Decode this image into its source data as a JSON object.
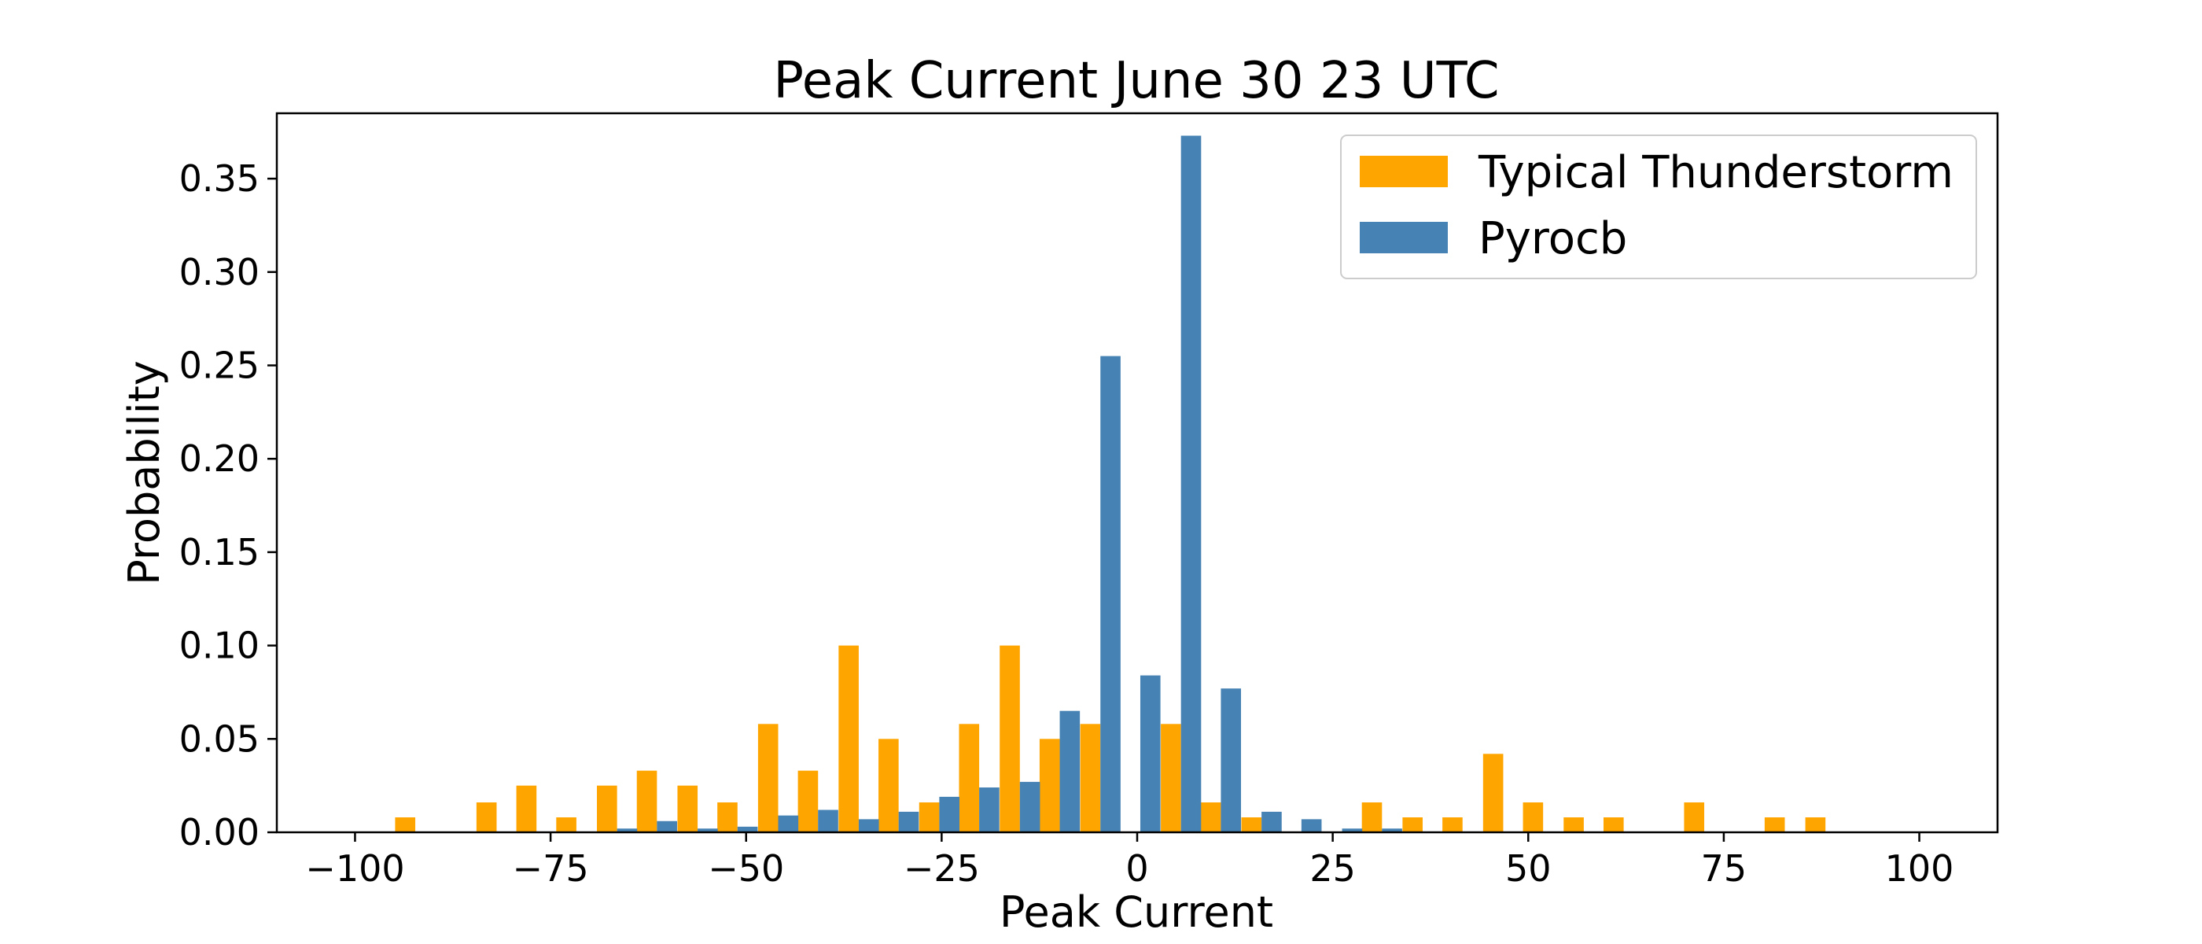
{
  "chart_data": {
    "type": "bar",
    "title": "Peak Current June 30 23 UTC",
    "xlabel": "Peak Current",
    "ylabel": "Probability",
    "xlim": [
      -110,
      110
    ],
    "ylim": [
      0,
      0.385
    ],
    "xticks": [
      -100,
      -75,
      -50,
      -25,
      0,
      25,
      50,
      75,
      100
    ],
    "xtick_labels": [
      "−100",
      "−75",
      "−50",
      "−25",
      "0",
      "25",
      "50",
      "75",
      "100"
    ],
    "yticks": [
      0,
      0.05,
      0.1,
      0.15,
      0.2,
      0.25,
      0.3,
      0.35
    ],
    "ytick_labels": [
      "0.00",
      "0.05",
      "0.10",
      "0.15",
      "0.20",
      "0.25",
      "0.30",
      "0.35"
    ],
    "grid": false,
    "legend_position": "top-right",
    "bin_width": 5.15,
    "bin_centers": [
      -97.4,
      -92.3,
      -87.1,
      -81.9,
      -76.8,
      -71.7,
      -66.5,
      -61.4,
      -56.2,
      -51.1,
      -45.9,
      -40.8,
      -35.6,
      -30.5,
      -25.3,
      -20.2,
      -15.0,
      -9.9,
      -4.7,
      0.4,
      5.6,
      10.7,
      15.9,
      21.0,
      26.2,
      31.3,
      36.5,
      41.6,
      46.8,
      51.9,
      57.1,
      62.2,
      67.4,
      72.5,
      77.7,
      82.8,
      88.0,
      93.1,
      98.3
    ],
    "series": [
      {
        "name": "Typical Thunderstorm",
        "color": "#FFA500",
        "values": [
          0,
          0.008,
          0,
          0.016,
          0.025,
          0.008,
          0.025,
          0.033,
          0.025,
          0.016,
          0.058,
          0.033,
          0.1,
          0.05,
          0.016,
          0.058,
          0.1,
          0.05,
          0.058,
          0,
          0.058,
          0.016,
          0.008,
          0,
          0,
          0.016,
          0.008,
          0.008,
          0.042,
          0.016,
          0.008,
          0.008,
          0,
          0.016,
          0,
          0.008,
          0.008,
          0,
          0
        ]
      },
      {
        "name": "Pyrocb",
        "color": "#4682B4",
        "values": [
          0,
          0,
          0,
          0,
          0,
          0,
          0.002,
          0.006,
          0.002,
          0.003,
          0.009,
          0.012,
          0.007,
          0.011,
          0.019,
          0.024,
          0.027,
          0.065,
          0.255,
          0.084,
          0.373,
          0.077,
          0.011,
          0.007,
          0.002,
          0.002,
          0,
          0,
          0,
          0,
          0,
          0,
          0,
          0,
          0,
          0,
          0,
          0,
          0
        ]
      }
    ]
  }
}
